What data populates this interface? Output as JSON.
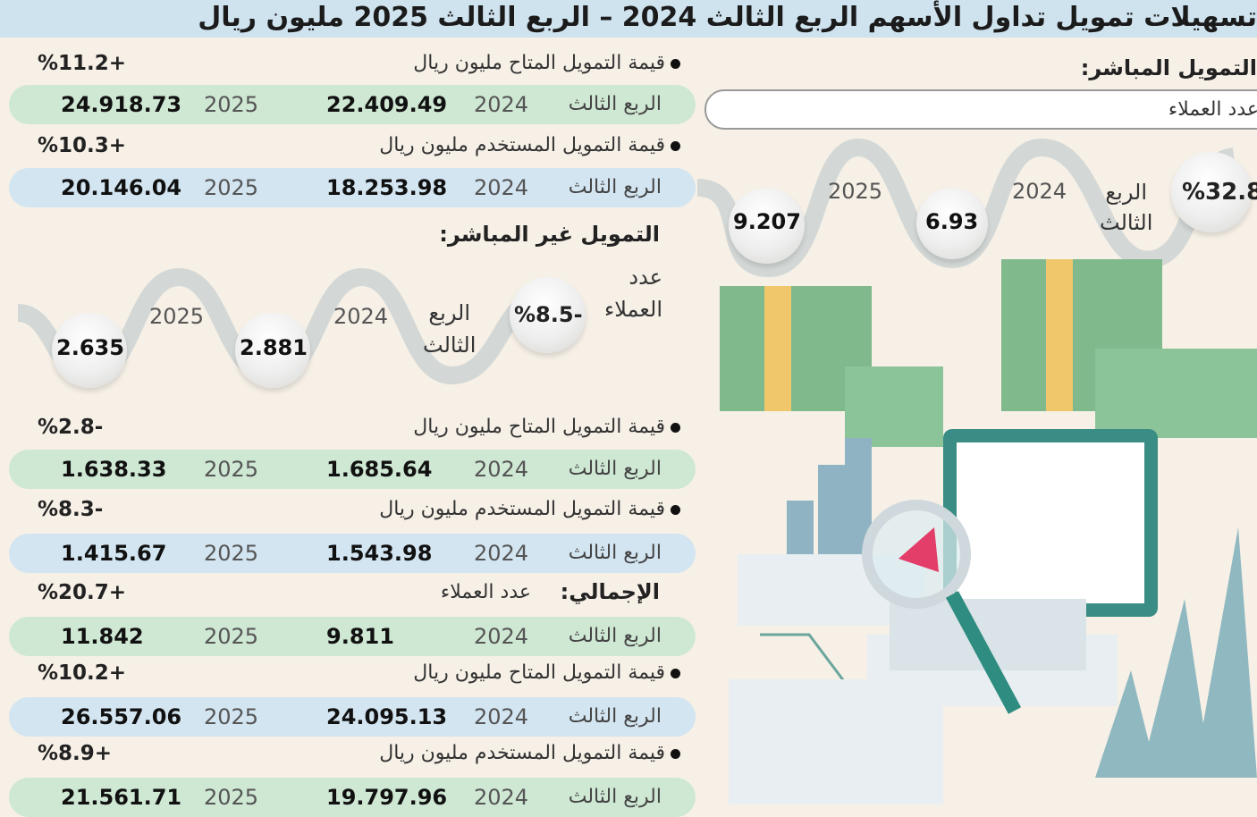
{
  "title": "تسهيلات تمويل تداول الأسهم الربع الثالث 2024 – الربع الثالث 2025 مليون ريال",
  "quarter": "الربع الثالث",
  "quarter_word1": "الربع",
  "quarter_word2": "الثالث",
  "direct": {
    "heading": "التمويل المباشر:",
    "clients_label": "عدد العملاء",
    "clients_change": "%32.8",
    "clients_2024": "6.93",
    "clients_2025": "9.207",
    "rows": [
      {
        "label": "قيمة التمويل المتاح مليون ريال",
        "change": "%11.2+",
        "y2024": "2024",
        "v2024": "22.409.49",
        "y2025": "2025",
        "v2025": "24.918.73"
      },
      {
        "label": "قيمة التمويل المستخدم مليون ريال",
        "change": "%10.3+",
        "y2024": "2024",
        "v2024": "18.253.98",
        "y2025": "2025",
        "v2025": "20.146.04"
      }
    ]
  },
  "indirect": {
    "heading": "التمويل غير المباشر:",
    "clients_label_1": "عدد",
    "clients_label_2": "العملاء",
    "clients_change": "%8.5-",
    "clients_2024": "2.881",
    "clients_2025": "2.635",
    "rows": [
      {
        "label": "قيمة التمويل المتاح مليون ريال",
        "change": "%2.8-",
        "y2024": "2024",
        "v2024": "1.685.64",
        "y2025": "2025",
        "v2025": "1.638.33"
      },
      {
        "label": "قيمة التمويل المستخدم مليون ريال",
        "change": "%8.3-",
        "y2024": "2024",
        "v2024": "1.543.98",
        "y2025": "2025",
        "v2025": "1.415.67"
      }
    ]
  },
  "total": {
    "heading": "الإجمالي:",
    "clients_label": "عدد العملاء",
    "clients_change": "%20.7+",
    "clients_2024": "9.811",
    "clients_2025": "11.842",
    "rows": [
      {
        "label": "قيمة التمويل المتاح مليون ريال",
        "change": "%10.2+",
        "y2024": "2024",
        "v2024": "24.095.13",
        "y2025": "2025",
        "v2025": "26.557.06"
      },
      {
        "label": "قيمة التمويل المستخدم مليون ريال",
        "change": "%8.9+",
        "y2024": "2024",
        "v2024": "19.797.96",
        "y2025": "2025",
        "v2025": "21.561.71"
      }
    ]
  },
  "years": {
    "a": "2024",
    "b": "2025"
  },
  "colors": {
    "green_pill": "#cfe8d4",
    "blue_pill": "#d3e5f1",
    "title_bar": "#cfe3ef",
    "background": "#f6f0e7"
  }
}
